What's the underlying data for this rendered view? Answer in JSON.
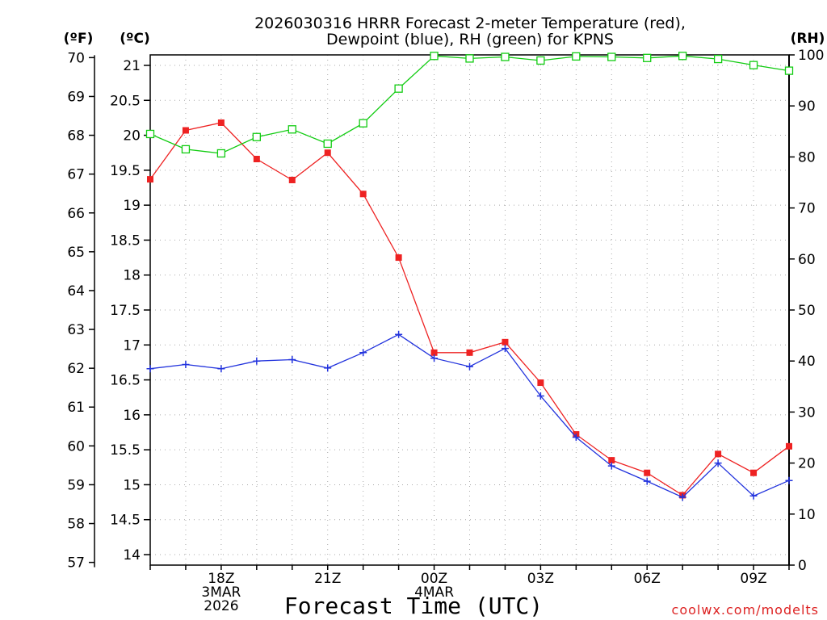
{
  "chart_data": {
    "type": "line",
    "title": [
      "2026030316 HRRR Forecast 2-meter Temperature (red),",
      "Dewpoint (blue), RH (green) for KPNS"
    ],
    "xlabel": "Forecast Time (UTC)",
    "watermark": "coolwx.com/modelts",
    "axis_units": {
      "fahrenheit": "(ºF)",
      "celsius": "(ºC)",
      "rh": "(RH)"
    },
    "x_hours": [
      16,
      17,
      18,
      19,
      20,
      21,
      22,
      23,
      24,
      25,
      26,
      27,
      28,
      29,
      30,
      31,
      32,
      33,
      34
    ],
    "xlim": [
      16,
      34
    ],
    "x_ticks": [
      {
        "x": 18,
        "lines": [
          "18Z",
          "3MAR",
          "2026"
        ]
      },
      {
        "x": 21,
        "lines": [
          "21Z"
        ]
      },
      {
        "x": 24,
        "lines": [
          "00Z",
          "4MAR"
        ]
      },
      {
        "x": 27,
        "lines": [
          "03Z"
        ]
      },
      {
        "x": 30,
        "lines": [
          "06Z"
        ]
      },
      {
        "x": 33,
        "lines": [
          "09Z"
        ]
      }
    ],
    "ylim_c": [
      13.85,
      21.15
    ],
    "y_ticks_c": [
      14,
      14.5,
      15,
      15.5,
      16,
      16.5,
      17,
      17.5,
      18,
      18.5,
      19,
      19.5,
      20,
      20.5,
      21
    ],
    "y_ticks_f": [
      57,
      58,
      59,
      60,
      61,
      62,
      63,
      64,
      65,
      66,
      67,
      68,
      69,
      70
    ],
    "ylim_rh": [
      0,
      100
    ],
    "y_ticks_rh": [
      0,
      10,
      20,
      30,
      40,
      50,
      60,
      70,
      80,
      90,
      100
    ],
    "series": [
      {
        "name": "Temperature",
        "unit": "C",
        "color": "#ee2222",
        "marker": "filled-square",
        "values": [
          19.37,
          20.07,
          20.18,
          19.66,
          19.36,
          19.75,
          19.16,
          18.25,
          16.89,
          16.89,
          17.04,
          16.46,
          15.72,
          15.35,
          15.17,
          14.85,
          15.44,
          15.17,
          15.55
        ]
      },
      {
        "name": "Dewpoint",
        "unit": "C",
        "color": "#2233dd",
        "marker": "plus",
        "values": [
          16.66,
          16.72,
          16.66,
          16.77,
          16.79,
          16.67,
          16.89,
          17.15,
          16.81,
          16.69,
          16.95,
          16.27,
          15.68,
          15.27,
          15.05,
          14.82,
          15.31,
          14.84,
          15.06
        ]
      },
      {
        "name": "RH",
        "unit": "%",
        "color": "#11cc11",
        "marker": "open-square",
        "values": [
          84.5,
          81.5,
          80.7,
          83.9,
          85.4,
          82.6,
          86.6,
          93.4,
          99.8,
          99.3,
          99.6,
          98.9,
          99.7,
          99.6,
          99.4,
          99.8,
          99.2,
          98.0,
          96.9
        ]
      }
    ]
  }
}
